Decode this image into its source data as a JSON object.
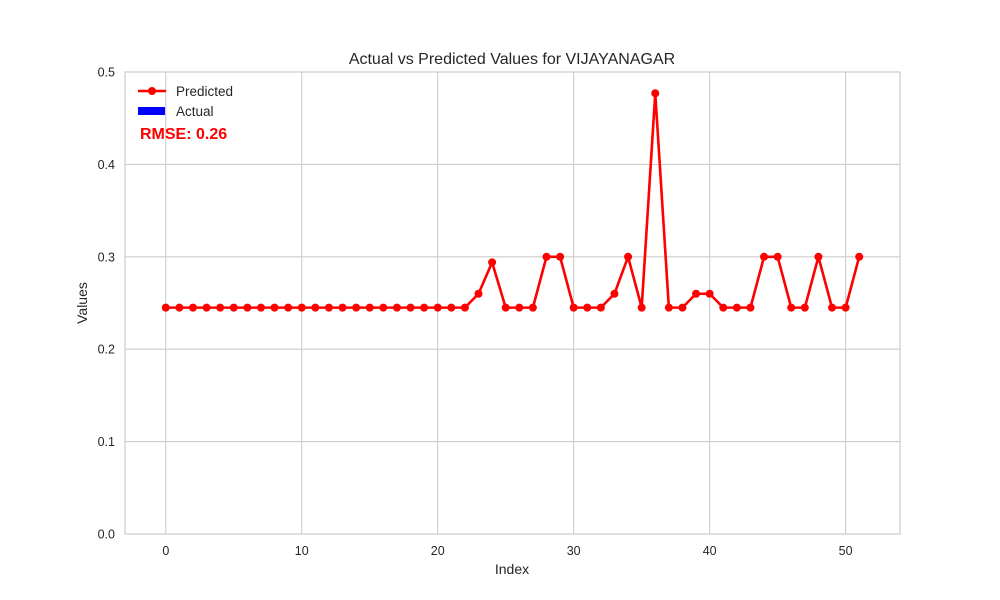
{
  "chart_data": {
    "type": "line",
    "title": "Actual vs Predicted Values for VIJAYANAGAR",
    "xlabel": "Index",
    "ylabel": "Values",
    "xlim": [
      -3,
      54
    ],
    "ylim": [
      0.0,
      0.5
    ],
    "xticks": [
      "0",
      "10",
      "20",
      "30",
      "40",
      "50"
    ],
    "yticks": [
      "0.0",
      "0.1",
      "0.2",
      "0.3",
      "0.4",
      "0.5"
    ],
    "grid": true,
    "legend_position": "top-left",
    "series": [
      {
        "name": "Predicted",
        "color": "#ff0000",
        "marker": "circle",
        "x": [
          0,
          1,
          2,
          3,
          4,
          5,
          6,
          7,
          8,
          9,
          10,
          11,
          12,
          13,
          14,
          15,
          16,
          17,
          18,
          19,
          20,
          21,
          22,
          23,
          24,
          25,
          26,
          27,
          28,
          29,
          30,
          31,
          32,
          33,
          34,
          35,
          36,
          37,
          38,
          39,
          40,
          41,
          42,
          43,
          44,
          45,
          46,
          47,
          48,
          49,
          50,
          51
        ],
        "values": [
          0.245,
          0.245,
          0.245,
          0.245,
          0.245,
          0.245,
          0.245,
          0.245,
          0.245,
          0.245,
          0.245,
          0.245,
          0.245,
          0.245,
          0.245,
          0.245,
          0.245,
          0.245,
          0.245,
          0.245,
          0.245,
          0.245,
          0.245,
          0.26,
          0.294,
          0.245,
          0.245,
          0.245,
          0.3,
          0.3,
          0.245,
          0.245,
          0.245,
          0.26,
          0.3,
          0.245,
          0.477,
          0.245,
          0.245,
          0.26,
          0.26,
          0.245,
          0.245,
          0.245,
          0.3,
          0.3,
          0.245,
          0.245,
          0.3,
          0.245,
          0.245,
          0.3
        ]
      },
      {
        "name": "Actual",
        "color": "#0000ff",
        "x": [],
        "values": []
      }
    ],
    "annotation": {
      "text": "RMSE: 0.26",
      "color": "#ff0000"
    }
  }
}
